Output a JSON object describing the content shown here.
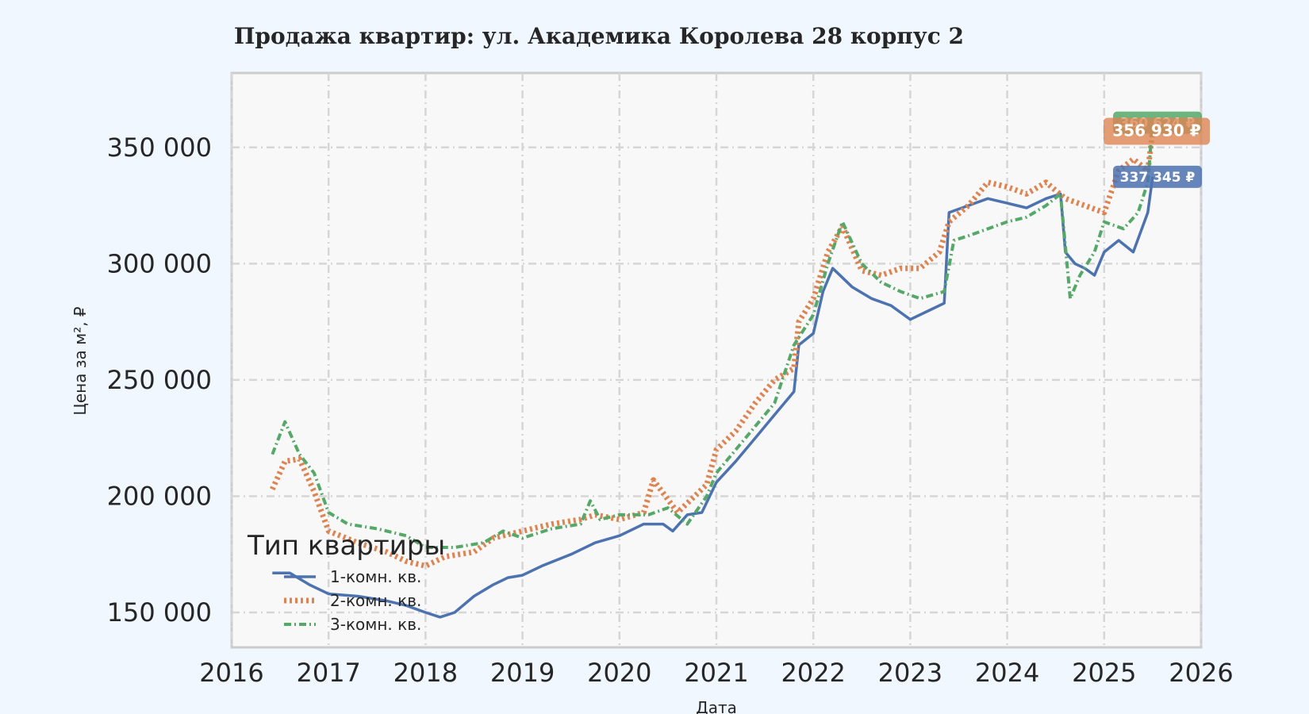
{
  "chart_data": {
    "type": "line",
    "title": "Продажа квартир: ул. Академика Королева 28 корпус 2",
    "xlabel": "Дата",
    "ylabel": "Цена за м², ₽",
    "xlim": [
      2016,
      2026
    ],
    "ylim": [
      135000,
      382000
    ],
    "x_ticks": [
      2016,
      2017,
      2018,
      2019,
      2020,
      2021,
      2022,
      2023,
      2024,
      2025,
      2026
    ],
    "x_tick_labels": [
      "2016",
      "2017",
      "2018",
      "2019",
      "2020",
      "2021",
      "2022",
      "2023",
      "2024",
      "2025",
      "2026"
    ],
    "y_ticks": [
      150000,
      200000,
      250000,
      300000,
      350000
    ],
    "y_tick_labels": [
      "150 000",
      "200 000",
      "250 000",
      "300 000",
      "350 000"
    ],
    "grid": true,
    "legend": {
      "title": "Тип квартиры",
      "placement": "lower-left"
    },
    "series": [
      {
        "name": "1-комн. кв.",
        "color": "#4c72b0",
        "style": "solid",
        "end_label": "337 345 ₽",
        "x": [
          2016.42,
          2016.6,
          2016.8,
          2017.0,
          2017.3,
          2017.6,
          2017.8,
          2018.0,
          2018.15,
          2018.3,
          2018.5,
          2018.7,
          2018.85,
          2019.0,
          2019.2,
          2019.5,
          2019.75,
          2020.0,
          2020.25,
          2020.45,
          2020.55,
          2020.7,
          2020.85,
          2021.0,
          2021.2,
          2021.4,
          2021.6,
          2021.8,
          2021.85,
          2022.0,
          2022.1,
          2022.2,
          2022.4,
          2022.6,
          2022.8,
          2023.0,
          2023.2,
          2023.35,
          2023.4,
          2023.6,
          2023.8,
          2024.0,
          2024.2,
          2024.4,
          2024.55,
          2024.6,
          2024.7,
          2024.8,
          2024.9,
          2025.0,
          2025.15,
          2025.3,
          2025.45,
          2025.5
        ],
        "values": [
          167000,
          167000,
          162000,
          158000,
          157000,
          155000,
          153000,
          150000,
          148000,
          150000,
          157000,
          162000,
          165000,
          166000,
          170000,
          175000,
          180000,
          183000,
          188000,
          188000,
          185000,
          192000,
          193000,
          206000,
          215000,
          225000,
          235000,
          245000,
          265000,
          270000,
          288000,
          298000,
          290000,
          285000,
          282000,
          276000,
          280000,
          283000,
          322000,
          325000,
          328000,
          326000,
          324000,
          328000,
          330000,
          305000,
          300000,
          298000,
          295000,
          305000,
          310000,
          305000,
          322000,
          337345
        ]
      },
      {
        "name": "2-комн. кв.",
        "color": "#dd8452",
        "style": "dotted",
        "end_label": "356 930 ₽",
        "x": [
          2016.42,
          2016.55,
          2016.7,
          2016.85,
          2017.0,
          2017.3,
          2017.6,
          2017.8,
          2018.0,
          2018.2,
          2018.5,
          2018.7,
          2019.0,
          2019.3,
          2019.6,
          2019.75,
          2020.0,
          2020.25,
          2020.35,
          2020.6,
          2020.9,
          2021.0,
          2021.2,
          2021.4,
          2021.6,
          2021.8,
          2021.85,
          2022.0,
          2022.15,
          2022.3,
          2022.5,
          2022.7,
          2022.9,
          2023.1,
          2023.3,
          2023.4,
          2023.6,
          2023.8,
          2024.0,
          2024.2,
          2024.4,
          2024.6,
          2024.8,
          2025.0,
          2025.15,
          2025.3,
          2025.45,
          2025.5
        ],
        "values": [
          203000,
          215000,
          216000,
          202000,
          185000,
          180000,
          176000,
          172000,
          170000,
          174000,
          176000,
          182000,
          185000,
          188000,
          190000,
          192000,
          190000,
          193000,
          207000,
          193000,
          205000,
          220000,
          228000,
          240000,
          250000,
          255000,
          275000,
          285000,
          305000,
          316000,
          297000,
          295000,
          298000,
          298000,
          305000,
          318000,
          325000,
          335000,
          333000,
          330000,
          335000,
          328000,
          325000,
          322000,
          340000,
          345000,
          340000,
          356930
        ]
      },
      {
        "name": "3-комн. кв.",
        "color": "#55a868",
        "style": "dash-dot",
        "end_label": "360 624 ₽",
        "x": [
          2016.42,
          2016.55,
          2016.7,
          2016.85,
          2017.0,
          2017.2,
          2017.5,
          2017.8,
          2018.0,
          2018.3,
          2018.6,
          2018.8,
          2019.0,
          2019.3,
          2019.6,
          2019.7,
          2019.8,
          2020.0,
          2020.3,
          2020.5,
          2020.7,
          2020.9,
          2021.0,
          2021.2,
          2021.4,
          2021.6,
          2021.8,
          2022.0,
          2022.15,
          2022.3,
          2022.5,
          2022.7,
          2022.9,
          2023.1,
          2023.35,
          2023.45,
          2023.6,
          2023.8,
          2024.0,
          2024.2,
          2024.4,
          2024.55,
          2024.65,
          2024.75,
          2024.9,
          2025.0,
          2025.2,
          2025.35,
          2025.45,
          2025.5
        ],
        "values": [
          218000,
          232000,
          218000,
          210000,
          193000,
          188000,
          186000,
          183000,
          178000,
          178000,
          180000,
          185000,
          182000,
          186000,
          188000,
          198000,
          190000,
          192000,
          192000,
          195000,
          188000,
          200000,
          210000,
          220000,
          230000,
          240000,
          265000,
          278000,
          300000,
          318000,
          300000,
          292000,
          288000,
          285000,
          288000,
          310000,
          312000,
          315000,
          318000,
          320000,
          325000,
          330000,
          285000,
          295000,
          305000,
          318000,
          315000,
          322000,
          335000,
          360624
        ]
      }
    ]
  }
}
